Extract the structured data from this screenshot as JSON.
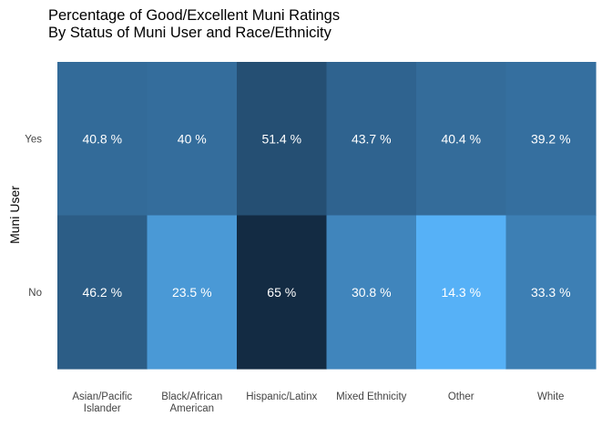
{
  "chart_data": {
    "type": "heatmap",
    "title": [
      "Percentage of Good/Excellent Muni Ratings",
      "By Status of Muni User and Race/Ethnicity"
    ],
    "xlabel": "",
    "ylabel": "Muni User",
    "x_categories": [
      [
        "Asian/Pacific",
        "Islander"
      ],
      [
        "Black/African",
        "American"
      ],
      [
        "Hispanic/Latinx"
      ],
      [
        "Mixed Ethnicity"
      ],
      [
        "Other"
      ],
      [
        "White"
      ]
    ],
    "y_categories": [
      "Yes",
      "No"
    ],
    "values": [
      [
        40.8,
        40,
        51.4,
        43.7,
        40.4,
        39.2
      ],
      [
        46.2,
        23.5,
        65,
        30.8,
        14.3,
        33.3
      ]
    ],
    "labels": [
      [
        "40.8 %",
        "40 %",
        "51.4 %",
        "43.7 %",
        "40.4 %",
        "39.2 %"
      ],
      [
        "46.2 %",
        "23.5 %",
        "65 %",
        "30.8 %",
        "14.3 %",
        "33.3 %"
      ]
    ],
    "color_scale": {
      "low": "#56b1f7",
      "high": "#132b43",
      "domain": [
        14.3,
        65
      ]
    },
    "legend": "none",
    "grid": false
  }
}
